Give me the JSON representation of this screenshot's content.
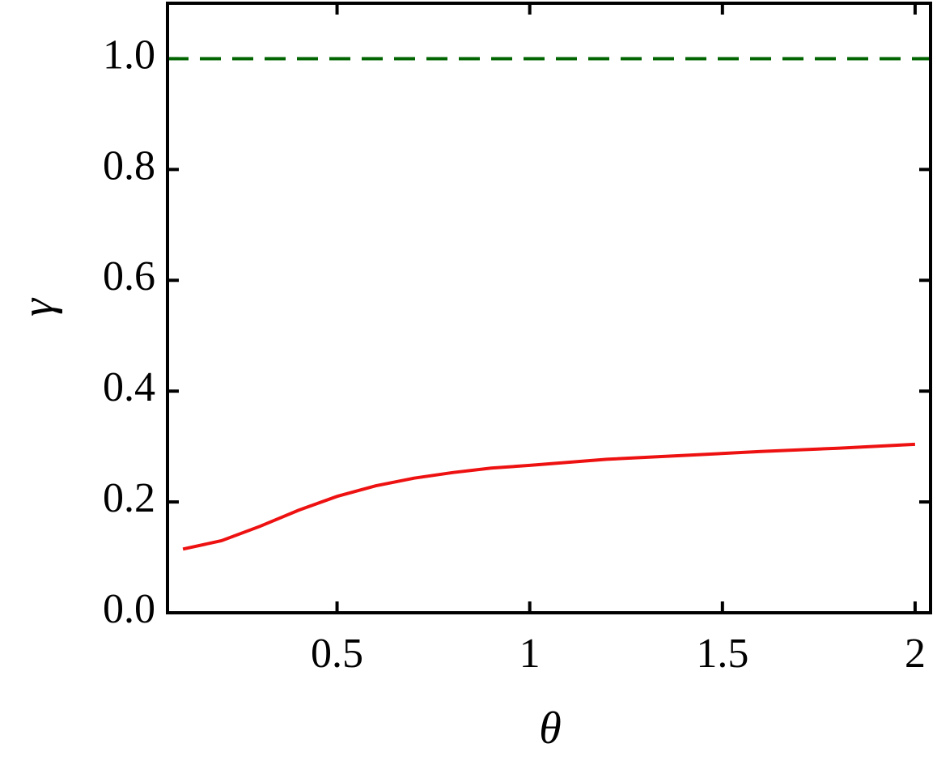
{
  "chart_data": {
    "type": "line",
    "x_label": "θ",
    "y_label": "γ",
    "xlim": [
      0.06,
      2.04
    ],
    "ylim": [
      0,
      1.1
    ],
    "xticks": [
      0.5,
      1,
      1.5,
      2
    ],
    "yticks": [
      {
        "value": 0,
        "label": "0.0"
      },
      0.2,
      0.4,
      0.6,
      0.8,
      {
        "value": 1,
        "label": "1.0"
      }
    ],
    "series": [
      {
        "color": "#ee1111",
        "dash": false,
        "x": [
          0.1,
          0.2,
          0.3,
          0.4,
          0.5,
          0.6,
          0.7,
          0.8,
          0.9,
          1.0,
          1.2,
          1.4,
          1.6,
          1.8,
          2.0
        ],
        "values": [
          0.115,
          0.13,
          0.156,
          0.185,
          0.21,
          0.229,
          0.243,
          0.253,
          0.261,
          0.266,
          0.277,
          0.284,
          0.291,
          0.297,
          0.304
        ]
      },
      {
        "color": "#006400",
        "dash": true,
        "x": [
          0.06,
          2.04
        ],
        "values": [
          1,
          1
        ]
      }
    ]
  }
}
